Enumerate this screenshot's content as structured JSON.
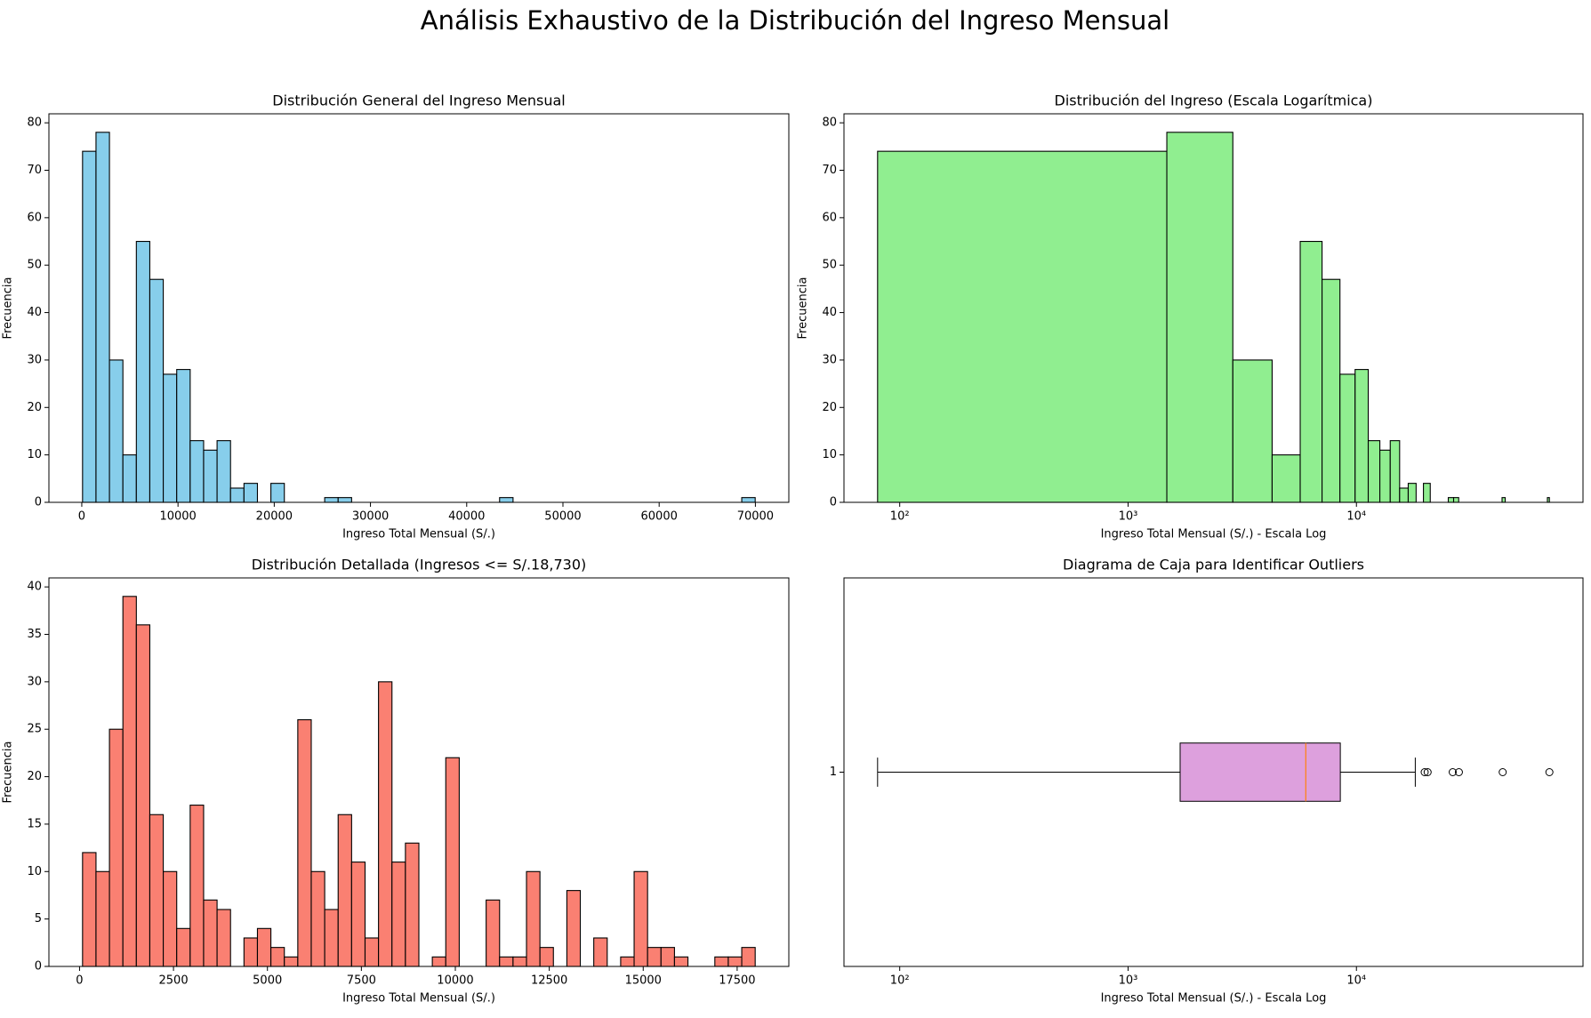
{
  "title": "Análisis Exhaustivo de la Distribución del Ingreso Mensual",
  "chart_data": [
    {
      "type": "histogram",
      "title": "Distribución General del Ingreso Mensual",
      "x_label": "Ingreso Total Mensual (S/.)",
      "y_label": "Frecuencia",
      "color": "#87ceeb",
      "bins": [
        80,
        1478,
        2876,
        4274,
        5672,
        7070,
        8468,
        9866,
        11264,
        12662,
        14060,
        15458,
        16856,
        18254,
        19652,
        21050,
        22448,
        23846,
        25244,
        26642,
        28040,
        29438,
        30836,
        32234,
        33632,
        35030,
        36428,
        37826,
        39224,
        40622,
        42020,
        43418,
        44816,
        46214,
        47612,
        49010,
        50408,
        51806,
        53204,
        54602,
        56000,
        57398,
        58796,
        60194,
        61592,
        62990,
        64388,
        65786,
        67184,
        68582,
        69980
      ],
      "values": [
        74,
        78,
        30,
        10,
        55,
        47,
        27,
        28,
        13,
        11,
        13,
        3,
        4,
        0,
        4,
        0,
        0,
        0,
        1,
        1,
        0,
        0,
        0,
        0,
        0,
        0,
        0,
        0,
        0,
        0,
        0,
        1,
        0,
        0,
        0,
        0,
        0,
        0,
        0,
        0,
        0,
        0,
        0,
        0,
        0,
        0,
        0,
        0,
        0,
        1
      ],
      "xlim": [
        -3415,
        73475
      ],
      "xticks": [
        0,
        10000,
        20000,
        30000,
        40000,
        50000,
        60000,
        70000
      ],
      "ylim": [
        0,
        81.9
      ],
      "yticks": [
        0,
        10,
        20,
        30,
        40,
        50,
        60,
        70,
        80
      ]
    },
    {
      "type": "histogram",
      "title": "Distribución del Ingreso (Escala Logarítmica)",
      "x_label": "Ingreso Total Mensual (S/.) - Escala Log",
      "y_label": "Frecuencia",
      "color": "#90ee90",
      "xscale": "log",
      "bins": [
        80,
        1478,
        2876,
        4274,
        5672,
        7070,
        8468,
        9866,
        11264,
        12662,
        14060,
        15458,
        16856,
        18254,
        19652,
        21050,
        22448,
        23846,
        25244,
        26642,
        28040,
        29438,
        30836,
        32234,
        33632,
        35030,
        36428,
        37826,
        39224,
        40622,
        42020,
        43418,
        44816,
        46214,
        47612,
        49010,
        50408,
        51806,
        53204,
        54602,
        56000,
        57398,
        58796,
        60194,
        61592,
        62990,
        64388,
        65786,
        67184,
        68582,
        69980
      ],
      "values": [
        74,
        78,
        30,
        10,
        55,
        47,
        27,
        28,
        13,
        11,
        13,
        3,
        4,
        0,
        4,
        0,
        0,
        0,
        1,
        1,
        0,
        0,
        0,
        0,
        0,
        0,
        0,
        0,
        0,
        0,
        0,
        1,
        0,
        0,
        0,
        0,
        0,
        0,
        0,
        0,
        0,
        0,
        0,
        0,
        0,
        0,
        0,
        0,
        0,
        1
      ],
      "xlim": [
        57,
        98200
      ],
      "xticks": [
        {
          "value": 100,
          "label": "10²"
        },
        {
          "value": 1000,
          "label": "10³"
        },
        {
          "value": 10000,
          "label": "10⁴"
        }
      ],
      "ylim": [
        0,
        81.9
      ],
      "yticks": [
        0,
        10,
        20,
        30,
        40,
        50,
        60,
        70,
        80
      ]
    },
    {
      "type": "histogram",
      "title": "Distribución Detallada (Ingresos <= S/.18,730)",
      "x_label": "Ingreso Total Mensual (S/.)",
      "y_label": "Frecuencia",
      "color": "#fa8072",
      "bins": [
        80,
        438,
        796,
        1154,
        1512,
        1870,
        2228,
        2586,
        2944,
        3302,
        3660,
        4018,
        4376,
        4734,
        5092,
        5450,
        5808,
        6166,
        6524,
        6882,
        7240,
        7598,
        7956,
        8314,
        8672,
        9030,
        9388,
        9746,
        10104,
        10462,
        10820,
        11178,
        11536,
        11894,
        12252,
        12610,
        12968,
        13326,
        13684,
        14042,
        14400,
        14758,
        15116,
        15474,
        15832,
        16190,
        16548,
        16906,
        17264,
        17622,
        17980
      ],
      "values": [
        12,
        10,
        25,
        39,
        36,
        16,
        10,
        4,
        17,
        7,
        6,
        0,
        3,
        4,
        2,
        1,
        26,
        10,
        6,
        16,
        11,
        3,
        30,
        11,
        13,
        0,
        1,
        22,
        0,
        0,
        7,
        1,
        1,
        10,
        2,
        0,
        8,
        0,
        3,
        0,
        1,
        10,
        2,
        2,
        1,
        0,
        0,
        1,
        1,
        2
      ],
      "xlim": [
        -815,
        18875
      ],
      "xticks": [
        0,
        2500,
        5000,
        7500,
        10000,
        12500,
        15000,
        17500
      ],
      "ylim": [
        0,
        40.95
      ],
      "yticks": [
        0,
        5,
        10,
        15,
        20,
        25,
        30,
        35,
        40
      ]
    },
    {
      "type": "box",
      "title": "Diagrama de Caja para Identificar Outliers",
      "x_label": "Ingreso Total Mensual (S/.) - Escala Log",
      "xscale": "log",
      "color": "#dda0dd",
      "median_color": "#ff7f0e",
      "whisker_low": 80,
      "q1": 1690,
      "median": 6000,
      "q3": 8500,
      "whisker_high": 18100,
      "outliers": [
        19900,
        20500,
        26400,
        28100,
        43700,
        69980
      ],
      "xlim": [
        57,
        98200
      ],
      "xticks": [
        {
          "value": 100,
          "label": "10²"
        },
        {
          "value": 1000,
          "label": "10³"
        },
        {
          "value": 10000,
          "label": "10⁴"
        }
      ],
      "ylim": [
        0.5,
        1.5
      ],
      "yticks": [
        1
      ]
    }
  ]
}
